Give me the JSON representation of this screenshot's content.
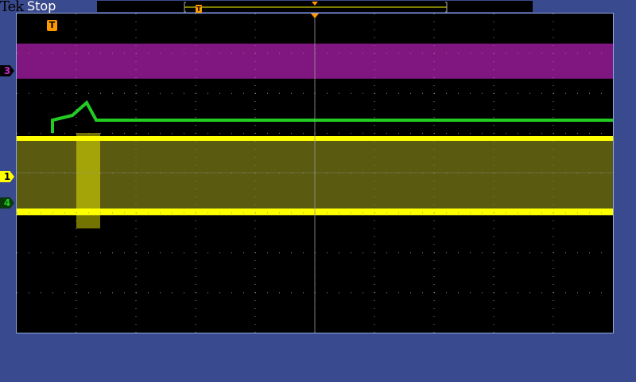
{
  "header": {
    "brand": "Tek",
    "status": "Stop"
  },
  "trigger": {
    "icon": "trigger-t-icon",
    "label": "T"
  },
  "channels": [
    {
      "label": "3",
      "color": "#cc22cc"
    },
    {
      "label": "1",
      "color": "#ffff00"
    },
    {
      "label": "4",
      "color": "#22cc22"
    }
  ],
  "colors": {
    "background": "#3a4a8e",
    "trigger": "#ff9900",
    "ch1": "#ffff00",
    "ch3": "#cc22cc",
    "ch4": "#22cc22"
  },
  "graticule": {
    "h_divisions": 10,
    "v_divisions": 8
  }
}
